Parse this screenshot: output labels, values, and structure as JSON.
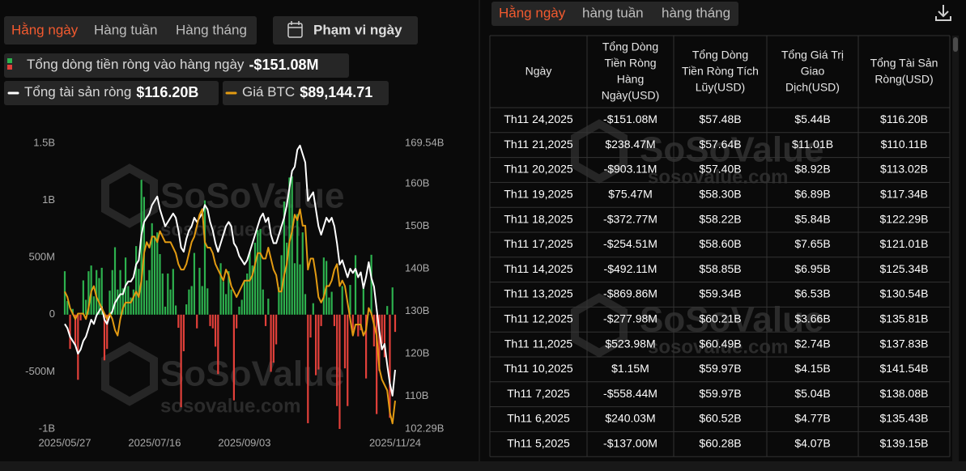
{
  "tabs": [
    "Hằng ngày",
    "Hàng tuần",
    "Hàng tháng"
  ],
  "date_range_button": "Phạm vi ngày",
  "table_tabs": [
    "Hằng ngày",
    "hàng tuần",
    "hàng tháng"
  ],
  "watermark": [
    "SoSoValue",
    "sosovalue.com"
  ],
  "chart_data": {
    "type": "bar",
    "categories": [
      "2025/05/27",
      null,
      null,
      null,
      null,
      null,
      null,
      null,
      null,
      null,
      null,
      null,
      null,
      null,
      null,
      null,
      null,
      null,
      null,
      null,
      null,
      null,
      null,
      null,
      null,
      null,
      null,
      null,
      null,
      null,
      null,
      null,
      null,
      null,
      "2025/07/16",
      null,
      null,
      null,
      null,
      null,
      null,
      null,
      null,
      null,
      null,
      null,
      null,
      null,
      null,
      null,
      null,
      null,
      null,
      null,
      null,
      null,
      null,
      null,
      null,
      null,
      null,
      null,
      null,
      null,
      null,
      null,
      null,
      null,
      "2025/09/03",
      null,
      null,
      null,
      null,
      null,
      null,
      null,
      null,
      null,
      null,
      null,
      null,
      null,
      null,
      null,
      null,
      null,
      null,
      null,
      null,
      null,
      null,
      null,
      null,
      null,
      null,
      null,
      null,
      null,
      null,
      null,
      null,
      null,
      null,
      null,
      null,
      null,
      null,
      null,
      null,
      null,
      null,
      null,
      null,
      null,
      null,
      null,
      null,
      null,
      null,
      null,
      null,
      null,
      null,
      null,
      null,
      "2025/11/24"
    ],
    "ylim": [
      -1000,
      1500
    ],
    "yticks": [
      {
        "value": 1500,
        "label": "1.5B"
      },
      {
        "value": 1000,
        "label": "1B"
      },
      {
        "value": 500,
        "label": "500M"
      },
      0,
      {
        "value": -500,
        "label": "-500M"
      },
      {
        "value": -1000,
        "label": "-1B"
      }
    ],
    "y2lim": [
      102.29,
      169.54
    ],
    "y2ticks": [
      {
        "value": 169.54,
        "label": "169.54B"
      },
      {
        "value": 160,
        "label": "160B"
      },
      {
        "value": 150,
        "label": "150B"
      },
      {
        "value": 140,
        "label": "140B"
      },
      {
        "value": 130,
        "label": "130B"
      },
      {
        "value": 120,
        "label": "120B"
      },
      {
        "value": 110,
        "label": "110B"
      },
      {
        "value": 102.29,
        "label": "102.29B"
      }
    ],
    "y3lim": [
      84000,
      136000
    ],
    "grid": false,
    "series": [
      {
        "name": "Tổng dòng tiền ròng vào hàng ngày",
        "legend_value": "-$151.08M",
        "color": "#2db14e",
        "negative_color": "#e2403a",
        "values": [
          380,
          120,
          -300,
          50,
          -270,
          -570,
          -50,
          300,
          130,
          380,
          430,
          160,
          390,
          320,
          410,
          -400,
          -300,
          210,
          390,
          590,
          220,
          390,
          230,
          500,
          250,
          150,
          220,
          600,
          400,
          1180,
          1030,
          300,
          390,
          800,
          680,
          720,
          530,
          360,
          70,
          360,
          220,
          400,
          80,
          -115,
          -810,
          -320,
          90,
          220,
          250,
          540,
          -120,
          410,
          250,
          1000,
          230,
          -100,
          -120,
          -280,
          -520,
          450,
          290,
          180,
          380,
          220,
          -750,
          -120,
          70,
          130,
          300,
          360,
          550,
          430,
          630,
          740,
          750,
          220,
          -100,
          140,
          -500,
          -420,
          -260,
          240,
          520,
          990,
          630,
          1200,
          1210,
          450,
          880,
          440,
          720,
          180,
          -950,
          -200,
          100,
          -530,
          -480,
          -100,
          500,
          470,
          150,
          200,
          -100,
          -800,
          -1000,
          250,
          -470,
          -800,
          260,
          -140,
          520,
          -190,
          -137.0,
          240.03,
          -558.44,
          1.15,
          523.98,
          -277.98,
          -869.86,
          -492.11,
          -254.51,
          -372.77,
          75.47,
          -903.11,
          238.47,
          -151.08
        ]
      },
      {
        "name": "Tổng tài sản ròng",
        "legend_value": "$116.20B",
        "color": "#ffffff",
        "axis": "y2",
        "values": [
          127,
          126,
          124,
          123,
          122,
          120,
          121,
          123,
          124,
          126,
          128,
          127,
          129,
          130,
          131,
          128,
          127,
          129,
          130,
          132,
          133,
          134,
          134,
          136,
          137,
          137,
          138,
          141,
          142,
          148,
          151,
          152,
          153,
          155,
          156,
          157,
          154,
          152,
          150,
          151,
          152,
          153,
          152,
          149,
          145,
          144,
          147,
          149,
          150,
          152,
          151,
          152,
          153,
          155,
          154,
          151,
          149,
          146,
          144,
          146,
          148,
          150,
          151,
          150,
          146,
          145,
          143,
          142,
          141,
          142,
          144,
          146,
          148,
          150,
          152,
          153,
          151,
          152,
          148,
          146,
          146,
          148,
          150,
          152,
          155,
          159,
          163,
          164,
          168,
          169,
          167,
          165,
          156,
          157,
          158,
          154,
          150,
          148,
          150,
          152,
          151,
          152,
          150,
          146,
          141,
          142,
          140,
          138,
          140,
          139,
          140,
          138,
          139.15,
          135.43,
          138.08,
          141.54,
          137.83,
          135.81,
          130.54,
          125.34,
          121.01,
          122.29,
          117.34,
          113.02,
          110.11,
          116.2
        ]
      },
      {
        "name": "Giá BTC",
        "legend_value": "$89,144.71",
        "color": "#e39b12",
        "axis": "y3",
        "values": [
          109000,
          108000,
          106000,
          105000,
          104000,
          105000,
          105000,
          105000,
          104000,
          106000,
          109000,
          110000,
          108000,
          107000,
          106000,
          105000,
          104000,
          105000,
          104000,
          102000,
          101000,
          104000,
          106000,
          107000,
          107000,
          107000,
          108000,
          109000,
          108000,
          111000,
          116000,
          118000,
          117000,
          119000,
          119000,
          118000,
          120000,
          119000,
          118000,
          118000,
          118000,
          117000,
          116000,
          114000,
          113000,
          113000,
          114000,
          116000,
          118000,
          119000,
          121000,
          123000,
          124000,
          118000,
          117000,
          117000,
          116000,
          114000,
          113000,
          112000,
          111000,
          113000,
          112000,
          110000,
          109000,
          108000,
          109000,
          110000,
          111000,
          111000,
          111000,
          112000,
          114000,
          116000,
          116000,
          115000,
          115000,
          117000,
          115000,
          113000,
          112000,
          109000,
          109000,
          112000,
          114000,
          118000,
          120000,
          123000,
          122000,
          124000,
          121000,
          121000,
          113000,
          115000,
          115000,
          112000,
          108000,
          107000,
          108000,
          110000,
          110000,
          111000,
          113000,
          114000,
          110000,
          111000,
          110000,
          107000,
          104000,
          101000,
          103000,
          103000,
          103000,
          101000,
          102000,
          106000,
          105000,
          103000,
          101000,
          95000,
          93000,
          92000,
          91000,
          87000,
          85000,
          89144.71
        ]
      }
    ]
  },
  "table": {
    "headers": [
      [
        "Ngày"
      ],
      [
        "Tổng Dòng",
        "Tiền Ròng",
        "Hàng",
        "Ngày(USD)"
      ],
      [
        "Tổng Dòng",
        "Tiền Ròng Tích",
        "Lũy(USD)"
      ],
      [
        "Tổng Giá Trị",
        "Giao",
        "Dịch(USD)"
      ],
      [
        "Tổng Tài Sản",
        "Ròng(USD)"
      ]
    ],
    "rows": [
      [
        "Th11 24,2025",
        "-$151.08M",
        "$57.48B",
        "$5.44B",
        "$116.20B"
      ],
      [
        "Th11 21,2025",
        "$238.47M",
        "$57.64B",
        "$11.01B",
        "$110.11B"
      ],
      [
        "Th11 20,2025",
        "-$903.11M",
        "$57.40B",
        "$8.92B",
        "$113.02B"
      ],
      [
        "Th11 19,2025",
        "$75.47M",
        "$58.30B",
        "$6.89B",
        "$117.34B"
      ],
      [
        "Th11 18,2025",
        "-$372.77M",
        "$58.22B",
        "$5.84B",
        "$122.29B"
      ],
      [
        "Th11 17,2025",
        "-$254.51M",
        "$58.60B",
        "$7.65B",
        "$121.01B"
      ],
      [
        "Th11 14,2025",
        "-$492.11M",
        "$58.85B",
        "$6.95B",
        "$125.34B"
      ],
      [
        "Th11 13,2025",
        "-$869.86M",
        "$59.34B",
        "$6.53B",
        "$130.54B"
      ],
      [
        "Th11 12,2025",
        "-$277.98M",
        "$60.21B",
        "$3.66B",
        "$135.81B"
      ],
      [
        "Th11 11,2025",
        "$523.98M",
        "$60.49B",
        "$2.74B",
        "$137.83B"
      ],
      [
        "Th11 10,2025",
        "$1.15M",
        "$59.97B",
        "$4.15B",
        "$141.54B"
      ],
      [
        "Th11 7,2025",
        "-$558.44M",
        "$59.97B",
        "$5.04B",
        "$138.08B"
      ],
      [
        "Th11 6,2025",
        "$240.03M",
        "$60.52B",
        "$4.77B",
        "$135.43B"
      ],
      [
        "Th11 5,2025",
        "-$137.00M",
        "$60.28B",
        "$4.07B",
        "$139.15B"
      ]
    ]
  }
}
